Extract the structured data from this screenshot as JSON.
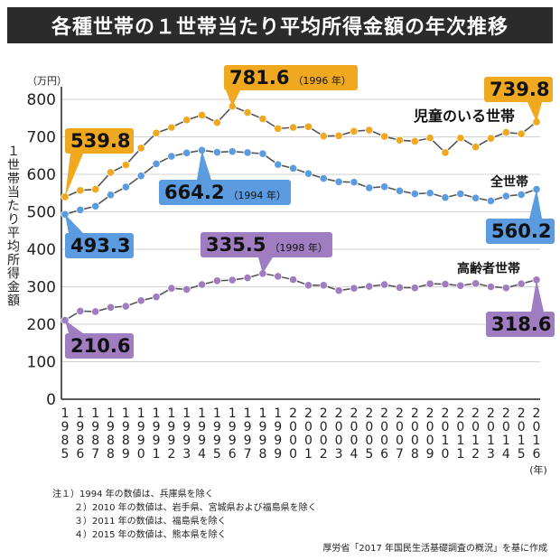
{
  "title": "各種世帯の１世帯当たり平均所得金額の年次推移",
  "chart_data": {
    "type": "line",
    "unit_label": "（万円）",
    "ylabel": "１世帯当たり平均所得金額",
    "xlabel_unit": "(年)",
    "ylim": [
      0,
      800
    ],
    "yticks": [
      0,
      100,
      200,
      300,
      400,
      500,
      600,
      700,
      800
    ],
    "x": [
      1985,
      1986,
      1987,
      1988,
      1989,
      1990,
      1991,
      1992,
      1993,
      1994,
      1995,
      1996,
      1997,
      1998,
      1999,
      2000,
      2001,
      2002,
      2003,
      2004,
      2005,
      2006,
      2007,
      2008,
      2009,
      2010,
      2011,
      2012,
      2013,
      2014,
      2015,
      2016
    ],
    "series": [
      {
        "name": "児童のいる世帯",
        "color": "#f0a81e",
        "values": [
          539.8,
          557,
          560,
          605,
          625,
          670,
          710,
          725,
          745,
          758,
          738,
          781.6,
          765,
          748,
          722,
          725,
          727,
          702,
          703,
          715,
          718,
          701,
          691,
          688,
          697,
          658,
          697,
          673,
          696,
          712,
          708,
          739.8
        ],
        "callouts": [
          {
            "year": 1985,
            "value": "539.8"
          },
          {
            "year": 1996,
            "value": "781.6",
            "note": "（1996 年）"
          },
          {
            "year": 2016,
            "value": "739.8"
          }
        ]
      },
      {
        "name": "全世帯",
        "color": "#5b9be0",
        "values": [
          493.3,
          505,
          515,
          545,
          566,
          596,
          628,
          648,
          657,
          664.2,
          659,
          661,
          658,
          655,
          626,
          616,
          602,
          589,
          580,
          579,
          564,
          567,
          556,
          548,
          550,
          538,
          548,
          537,
          529,
          542,
          546,
          560.2
        ],
        "callouts": [
          {
            "year": 1985,
            "value": "493.3"
          },
          {
            "year": 1994,
            "value": "664.2",
            "note": "（1994 年）"
          },
          {
            "year": 2016,
            "value": "560.2"
          }
        ]
      },
      {
        "name": "高齢者世帯",
        "color": "#a07cc0",
        "values": [
          210.6,
          235,
          234,
          245,
          248,
          263,
          273,
          296,
          293,
          306,
          316,
          318,
          324,
          335.5,
          328,
          319,
          304,
          304,
          290,
          296,
          301,
          306,
          298,
          297,
          308,
          307,
          303,
          309,
          300,
          297,
          308,
          318.6
        ],
        "callouts": [
          {
            "year": 1985,
            "value": "210.6"
          },
          {
            "year": 1998,
            "value": "335.5",
            "note": "（1998 年）"
          },
          {
            "year": 2016,
            "value": "318.6"
          }
        ]
      }
    ]
  },
  "notes": [
    "注１）1994 年の数値は、兵庫県を除く",
    "２）2010 年の数値は、岩手県、宮城県および福島県を除く",
    "３）2011 年の数値は、福島県を除く",
    "４）2015 年の数値は、熊本県を除く"
  ],
  "source": "厚労省「2017 年国民生活基礎調査の概況」を基に作成"
}
